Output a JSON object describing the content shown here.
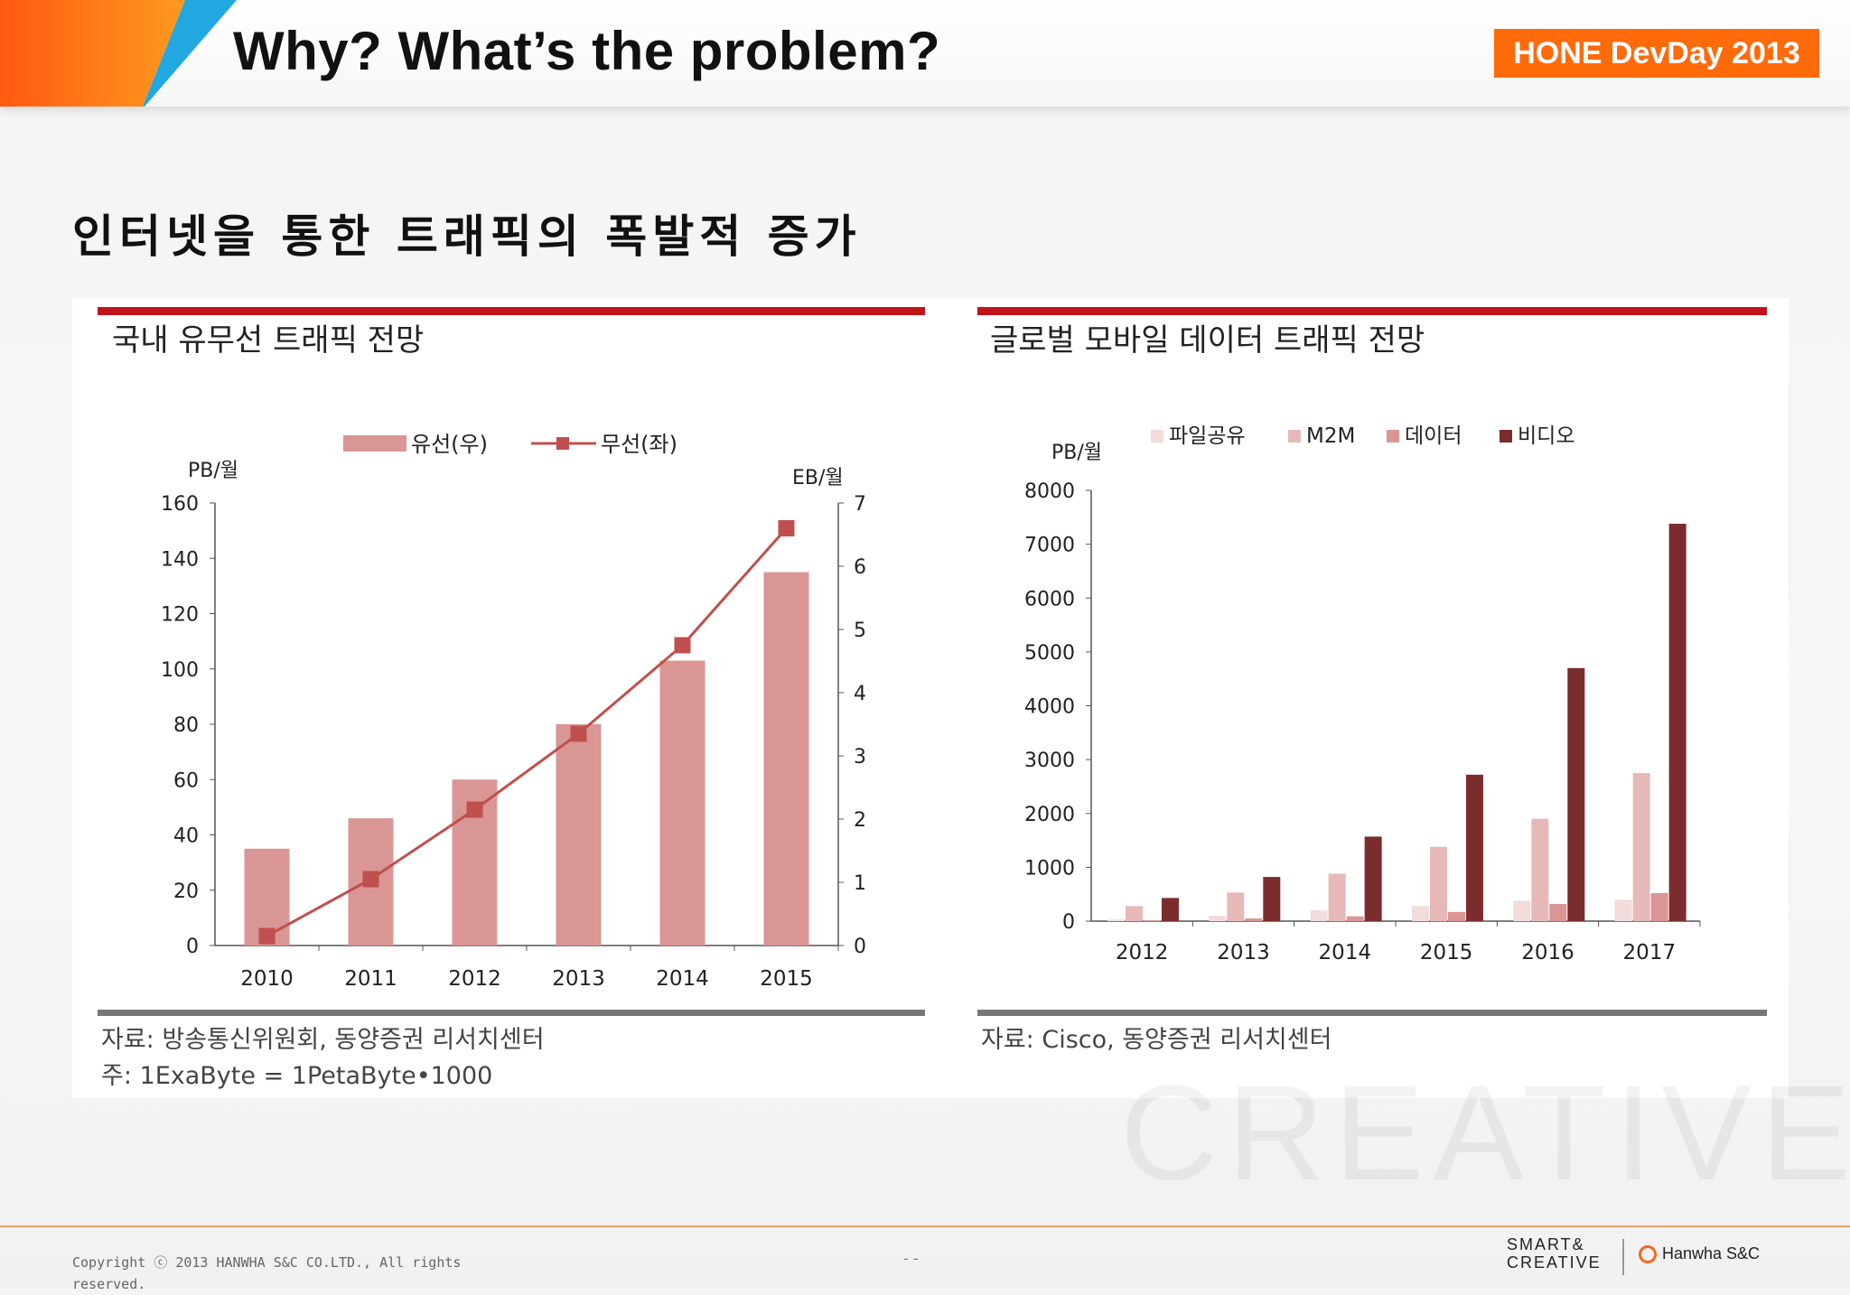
{
  "header": {
    "title": "Why? What’s the problem?",
    "badge": "HONE DevDay 2013"
  },
  "subtitle": "인터넷을 통한 트래픽의 폭발적 증가",
  "colors": {
    "accent": "#ff6a0a",
    "rule_red": "#c0141c",
    "bar": "#d99694",
    "line": "#c0504d",
    "file": "#f2dcdb",
    "m2m": "#e6b9b8",
    "data": "#d99694",
    "video": "#7b2c2c"
  },
  "chart_data": [
    {
      "type": "bar",
      "title": "국내 유무선 트래픽 전망",
      "categories": [
        "2010",
        "2011",
        "2012",
        "2013",
        "2014",
        "2015"
      ],
      "series": [
        {
          "name": "유선(우)",
          "type": "bar",
          "axis": "left",
          "values": [
            35,
            46,
            60,
            80,
            103,
            135
          ]
        },
        {
          "name": "무선(좌)",
          "type": "line",
          "axis": "right",
          "values": [
            0.15,
            1.05,
            2.15,
            3.35,
            4.75,
            6.6
          ]
        }
      ],
      "ylabel": "PB/월",
      "ylim": [
        0,
        160
      ],
      "yticks": [
        0,
        20,
        40,
        60,
        80,
        100,
        120,
        140,
        160
      ],
      "y2label": "EB/월",
      "y2lim": [
        0,
        7
      ],
      "y2ticks": [
        0,
        1,
        2,
        3,
        4,
        5,
        6,
        7
      ],
      "legend": "top-center",
      "source": "자료: 방송통신위원회, 동양증권 리서치센터",
      "note": "주: 1ExaByte = 1PetaByte•1000"
    },
    {
      "type": "bar",
      "title": "글로벌 모바일 데이터 트래픽 전망",
      "categories": [
        "2012",
        "2013",
        "2014",
        "2015",
        "2016",
        "2017"
      ],
      "series": [
        {
          "name": "파일공유",
          "values": [
            30,
            100,
            200,
            280,
            380,
            400
          ]
        },
        {
          "name": "M2M",
          "values": [
            280,
            530,
            880,
            1380,
            1900,
            2750
          ]
        },
        {
          "name": "데이터",
          "values": [
            10,
            50,
            90,
            170,
            320,
            520
          ]
        },
        {
          "name": "비디오",
          "values": [
            430,
            820,
            1570,
            2720,
            4700,
            7380
          ]
        }
      ],
      "ylabel": "PB/월",
      "ylim": [
        0,
        8000
      ],
      "yticks": [
        0,
        1000,
        2000,
        3000,
        4000,
        5000,
        6000,
        7000,
        8000
      ],
      "legend": "top-center",
      "source": "자료: Cisco, 동양증권 리서치센터"
    }
  ],
  "watermark": "CREATIVE",
  "footer": {
    "copyright": "Copyright ⓒ 2013 HANWHA S&C CO.LTD., All rights reserved.",
    "page": "- -",
    "logo_smart": "SMART&",
    "logo_creative": "CREATIVE",
    "logo_company": "Hanwha S&C"
  }
}
